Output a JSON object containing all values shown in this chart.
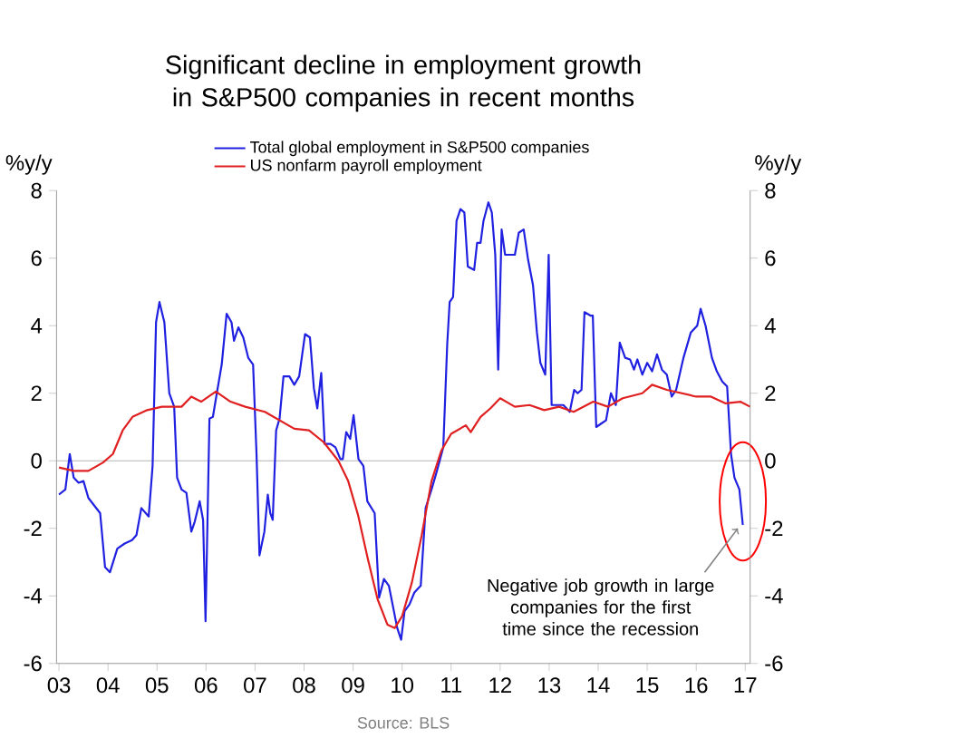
{
  "chart_data": {
    "type": "line",
    "title": "Significant decline in employment growth in S&P500 companies in recent months",
    "ylabel": "%y/y",
    "y2label": "%y/y",
    "xlim": [
      2002.95,
      2017.1
    ],
    "ylim": [
      -6,
      8
    ],
    "y2lim": [
      -6,
      8
    ],
    "xticks": [
      {
        "value": 2003,
        "label": "03"
      },
      {
        "value": 2004,
        "label": "04"
      },
      {
        "value": 2005,
        "label": "05"
      },
      {
        "value": 2006,
        "label": "06"
      },
      {
        "value": 2007,
        "label": "07"
      },
      {
        "value": 2008,
        "label": "08"
      },
      {
        "value": 2009,
        "label": "09"
      },
      {
        "value": 2010,
        "label": "10"
      },
      {
        "value": 2011,
        "label": "11"
      },
      {
        "value": 2012,
        "label": "12"
      },
      {
        "value": 2013,
        "label": "13"
      },
      {
        "value": 2014,
        "label": "14"
      },
      {
        "value": 2015,
        "label": "15"
      },
      {
        "value": 2016,
        "label": "16"
      },
      {
        "value": 2017,
        "label": "17"
      }
    ],
    "yticks": [
      -6,
      -4,
      -2,
      0,
      2,
      4,
      6,
      8
    ],
    "y2ticks": [
      -6,
      -4,
      -2,
      0,
      2,
      4,
      6,
      8
    ],
    "legend": "top",
    "grid": false,
    "marker": "none",
    "line_style": "solid",
    "ref_lines": [
      {
        "axis": "y",
        "value": 0,
        "color": "#a0a0a0"
      }
    ],
    "annotations": [
      {
        "text": "Negative job growth in large companies for the first time since the recession",
        "x": 2016.95,
        "y": -1.9
      },
      "Source: BLS"
    ],
    "series": [
      {
        "name": "Total global employment in S&P500 companies",
        "color": "#2020e0",
        "x": [
          2003.0,
          2003.13,
          2003.22,
          2003.3,
          2003.4,
          2003.5,
          2003.6,
          2003.84,
          2003.94,
          2004.04,
          2004.19,
          2004.34,
          2004.49,
          2004.58,
          2004.68,
          2004.83,
          2004.91,
          2004.98,
          2005.05,
          2005.15,
          2005.25,
          2005.35,
          2005.41,
          2005.5,
          2005.6,
          2005.7,
          2005.77,
          2005.87,
          2005.94,
          2005.99,
          2006.07,
          2006.14,
          2006.22,
          2006.32,
          2006.42,
          2006.52,
          2006.57,
          2006.66,
          2006.76,
          2006.86,
          2006.96,
          2007.03,
          2007.09,
          2007.19,
          2007.26,
          2007.31,
          2007.36,
          2007.43,
          2007.5,
          2007.58,
          2007.7,
          2007.8,
          2007.9,
          2008.02,
          2008.12,
          2008.2,
          2008.27,
          2008.35,
          2008.42,
          2008.54,
          2008.64,
          2008.74,
          2008.79,
          2008.86,
          2008.94,
          2009.01,
          2009.11,
          2009.21,
          2009.29,
          2009.44,
          2009.53,
          2009.63,
          2009.73,
          2009.9,
          2009.98,
          2010.05,
          2010.15,
          2010.25,
          2010.38,
          2010.48,
          2010.6,
          2010.71,
          2010.84,
          2010.92,
          2010.97,
          2011.04,
          2011.11,
          2011.19,
          2011.27,
          2011.34,
          2011.47,
          2011.53,
          2011.6,
          2011.66,
          2011.76,
          2011.83,
          2011.9,
          2011.96,
          2012.03,
          2012.1,
          2012.2,
          2012.3,
          2012.38,
          2012.48,
          2012.57,
          2012.67,
          2012.75,
          2012.82,
          2012.92,
          2012.99,
          2013.05,
          2013.17,
          2013.29,
          2013.42,
          2013.51,
          2013.58,
          2013.66,
          2013.72,
          2013.84,
          2013.89,
          2013.96,
          2014.06,
          2014.16,
          2014.26,
          2014.36,
          2014.44,
          2014.55,
          2014.65,
          2014.73,
          2014.8,
          2014.9,
          2015.0,
          2015.1,
          2015.2,
          2015.3,
          2015.4,
          2015.5,
          2015.59,
          2015.74,
          2015.89,
          2016.02,
          2016.09,
          2016.19,
          2016.32,
          2016.42,
          2016.53,
          2016.63,
          2016.71,
          2016.78,
          2016.88,
          2016.95
        ],
        "values": [
          -1.0,
          -0.85,
          0.2,
          -0.5,
          -0.65,
          -0.6,
          -1.1,
          -1.55,
          -3.15,
          -3.3,
          -2.6,
          -2.45,
          -2.35,
          -2.2,
          -1.4,
          -1.65,
          -0.15,
          4.1,
          4.7,
          4.1,
          2.0,
          1.6,
          -0.5,
          -0.85,
          -0.95,
          -2.1,
          -1.8,
          -1.2,
          -1.75,
          -4.75,
          1.25,
          1.3,
          2.0,
          2.85,
          4.35,
          4.1,
          3.55,
          3.95,
          3.65,
          3.05,
          2.85,
          0.2,
          -2.8,
          -2.1,
          -1.0,
          -1.55,
          -1.75,
          0.9,
          1.25,
          2.5,
          2.5,
          2.25,
          2.5,
          3.75,
          3.65,
          2.15,
          1.55,
          2.6,
          0.5,
          0.5,
          0.4,
          0.05,
          0.05,
          0.85,
          0.65,
          1.35,
          0.05,
          -0.15,
          -1.2,
          -1.55,
          -4.05,
          -3.5,
          -3.7,
          -4.95,
          -5.3,
          -4.45,
          -4.25,
          -3.9,
          -3.7,
          -1.4,
          -0.85,
          -0.3,
          0.4,
          3.45,
          4.7,
          4.85,
          7.1,
          7.45,
          7.35,
          5.75,
          5.65,
          6.45,
          6.45,
          7.1,
          7.65,
          7.35,
          6.1,
          2.7,
          6.85,
          6.1,
          6.1,
          6.1,
          6.75,
          6.85,
          5.95,
          5.2,
          3.8,
          2.9,
          2.55,
          6.1,
          1.65,
          1.65,
          1.65,
          1.45,
          2.1,
          2.0,
          2.1,
          4.4,
          4.3,
          4.3,
          1.0,
          1.1,
          1.2,
          2.0,
          1.65,
          3.5,
          3.05,
          3.0,
          2.7,
          3.0,
          2.55,
          2.9,
          2.65,
          3.15,
          2.7,
          2.55,
          1.9,
          2.1,
          3.05,
          3.8,
          4.0,
          4.5,
          4.0,
          3.05,
          2.65,
          2.35,
          2.2,
          0.2,
          -0.5,
          -0.85,
          -1.9
        ]
      },
      {
        "name": "US nonfarm payroll employment",
        "color": "#e02020",
        "x": [
          2003.0,
          2003.3,
          2003.6,
          2003.9,
          2004.1,
          2004.3,
          2004.5,
          2004.8,
          2005.1,
          2005.5,
          2005.7,
          2005.9,
          2006.2,
          2006.5,
          2006.8,
          2007.2,
          2007.5,
          2007.8,
          2008.1,
          2008.4,
          2008.7,
          2008.9,
          2009.1,
          2009.3,
          2009.5,
          2009.7,
          2009.85,
          2010.0,
          2010.2,
          2010.4,
          2010.6,
          2010.8,
          2011.0,
          2011.3,
          2011.4,
          2011.6,
          2011.8,
          2012.0,
          2012.3,
          2012.6,
          2012.9,
          2013.2,
          2013.5,
          2013.9,
          2014.2,
          2014.5,
          2014.9,
          2015.1,
          2015.4,
          2015.7,
          2016.0,
          2016.3,
          2016.6,
          2016.9,
          2017.1
        ],
        "values": [
          -0.2,
          -0.3,
          -0.3,
          -0.05,
          0.2,
          0.9,
          1.3,
          1.5,
          1.6,
          1.6,
          1.9,
          1.75,
          2.05,
          1.75,
          1.6,
          1.45,
          1.2,
          0.95,
          0.9,
          0.55,
          0.0,
          -0.6,
          -1.6,
          -2.9,
          -4.1,
          -4.85,
          -4.95,
          -4.6,
          -3.6,
          -2.2,
          -0.6,
          0.3,
          0.8,
          1.05,
          0.85,
          1.3,
          1.55,
          1.85,
          1.6,
          1.65,
          1.5,
          1.6,
          1.45,
          1.75,
          1.6,
          1.85,
          2.0,
          2.25,
          2.1,
          2.0,
          1.9,
          1.9,
          1.7,
          1.75,
          1.6
        ]
      }
    ]
  }
}
